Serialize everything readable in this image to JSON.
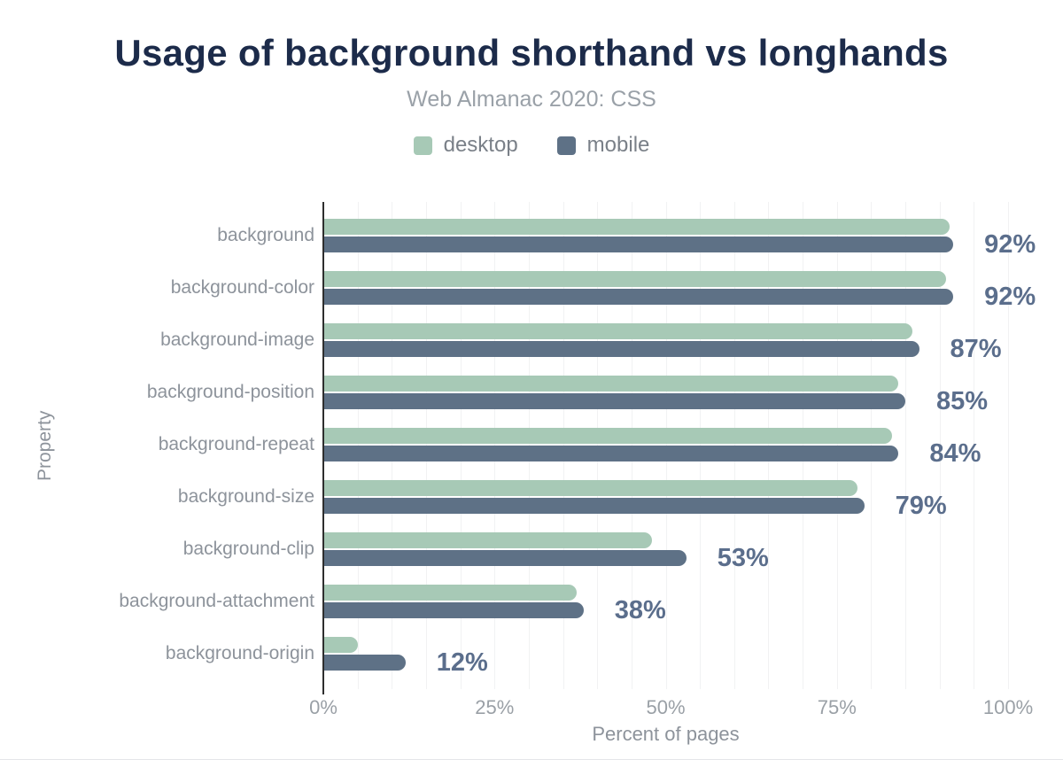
{
  "chart_data": {
    "type": "bar",
    "orientation": "horizontal",
    "title": "Usage of background shorthand vs longhands",
    "subtitle": "Web Almanac 2020: CSS",
    "xlabel": "Percent of pages",
    "ylabel": "Property",
    "xlim": [
      0,
      102
    ],
    "grid": {
      "step": 5,
      "max": 100,
      "direction": "vertical"
    },
    "legend_position": "top-center",
    "x_ticks": [
      {
        "label": "0%",
        "value": 0
      },
      {
        "label": "25%",
        "value": 25
      },
      {
        "label": "50%",
        "value": 50
      },
      {
        "label": "75%",
        "value": 75
      },
      {
        "label": "100%",
        "value": 100
      }
    ],
    "categories": [
      "background",
      "background-color",
      "background-image",
      "background-position",
      "background-repeat",
      "background-size",
      "background-clip",
      "background-attachment",
      "background-origin"
    ],
    "series": [
      {
        "name": "desktop",
        "color": "#a7c9b6",
        "values": [
          91.5,
          91,
          86,
          84,
          83,
          78,
          48,
          37,
          5
        ]
      },
      {
        "name": "mobile",
        "color": "#5e7186",
        "values": [
          92,
          92,
          87,
          85,
          84,
          79,
          53,
          38,
          12
        ]
      }
    ],
    "bar_labels": [
      "92%",
      "92%",
      "87%",
      "85%",
      "84%",
      "79%",
      "53%",
      "38%",
      "12%"
    ]
  },
  "colors": {
    "title": "#1c2b4a",
    "subtitle": "#9aa1a8",
    "axis_text": "#8d939b",
    "tick_text": "#9aa0a6",
    "value_label": "#5b6e8c",
    "gridline": "#f1f2f3",
    "axis_line": "#2e2e2e",
    "legend_text": "#7a8088",
    "desktop_bar": "#a7c9b6",
    "mobile_bar": "#5e7186"
  }
}
